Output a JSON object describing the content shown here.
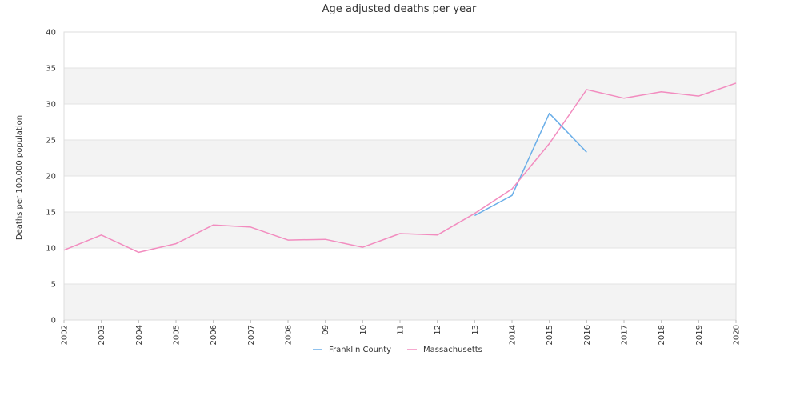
{
  "chart_data": {
    "type": "line",
    "title": "Age adjusted deaths per year",
    "xlabel": "",
    "ylabel": "Deaths per 100,000 population",
    "categories": [
      "2002",
      "2003",
      "2004",
      "2005",
      "2006",
      "2007",
      "2008",
      "09",
      "10",
      "11",
      "12",
      "13",
      "2014",
      "2015",
      "2016",
      "2017",
      "2018",
      "2019",
      "2020"
    ],
    "ylim": [
      0,
      40
    ],
    "yticks": [
      "0",
      "5",
      "10",
      "15",
      "20",
      "25",
      "30",
      "35",
      "40"
    ],
    "grid": "alternating horizontal bands",
    "legend_position": "bottom-center",
    "series": [
      {
        "name": "Franklin County",
        "color": "#6aaee8",
        "values": [
          null,
          null,
          null,
          null,
          null,
          null,
          null,
          null,
          null,
          null,
          null,
          14.5,
          17.3,
          28.7,
          23.3,
          null,
          null,
          null,
          null
        ]
      },
      {
        "name": "Massachusetts",
        "color": "#f28cbf",
        "values": [
          9.7,
          11.8,
          9.4,
          10.6,
          13.2,
          12.9,
          11.1,
          11.2,
          10.1,
          12.0,
          11.8,
          14.8,
          18.2,
          24.5,
          32.0,
          30.8,
          31.7,
          31.1,
          32.9
        ]
      }
    ]
  }
}
